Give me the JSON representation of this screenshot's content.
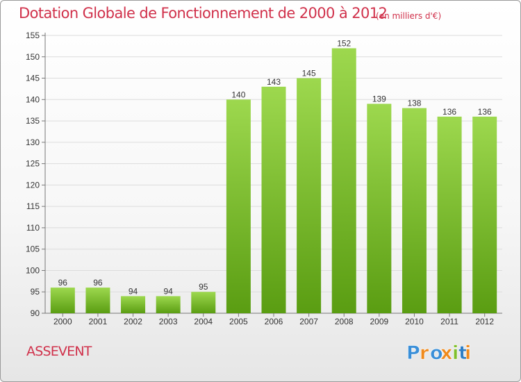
{
  "header": {
    "title": "Dotation Globale de Fonctionnement de 2000 à 2012",
    "unit": "(en milliers d'€)"
  },
  "footer": {
    "commune": "ASSEVENT",
    "brand": "Proxiti"
  },
  "colors": {
    "title": "#d0304a",
    "bar_top": "#9dd84e",
    "bar_bottom": "#5a9d12",
    "brand_letters": [
      "#3a8fd8",
      "#f08a1c",
      "#3a8fd8",
      "#f08a1c",
      "#7fbf2a",
      "#2f7fc6",
      "#f08a1c"
    ]
  },
  "chart_data": {
    "type": "bar",
    "categories": [
      "2000",
      "2001",
      "2002",
      "2003",
      "2004",
      "2005",
      "2006",
      "2007",
      "2008",
      "2009",
      "2010",
      "2011",
      "2012"
    ],
    "values": [
      96,
      96,
      94,
      94,
      95,
      140,
      143,
      145,
      152,
      139,
      138,
      136,
      136
    ],
    "ylim": [
      90,
      155
    ],
    "yticks": [
      90,
      95,
      100,
      105,
      110,
      115,
      120,
      125,
      130,
      135,
      140,
      145,
      150,
      155
    ],
    "grid": true
  }
}
